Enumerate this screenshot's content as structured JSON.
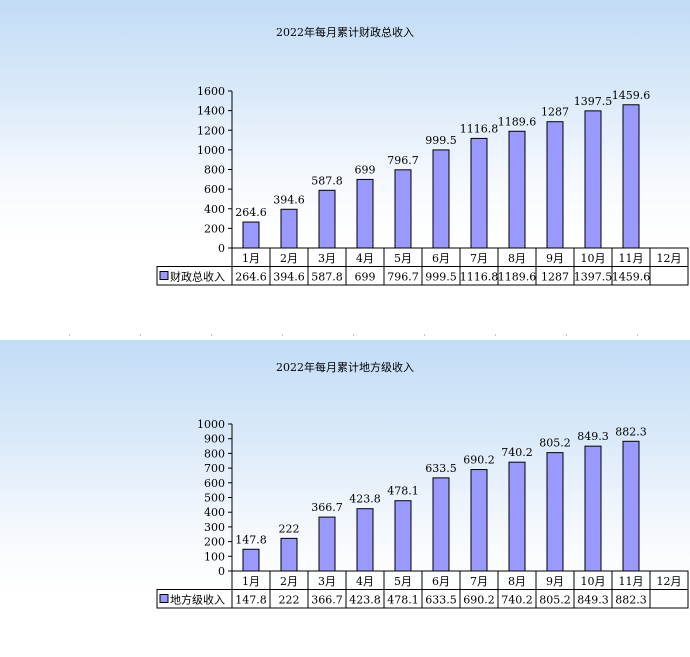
{
  "chart_data": [
    {
      "type": "bar",
      "title": "2022年每月累计财政总收入",
      "categories": [
        "1月",
        "2月",
        "3月",
        "4月",
        "5月",
        "6月",
        "7月",
        "8月",
        "9月",
        "10月",
        "11月",
        "12月"
      ],
      "series": [
        {
          "name": "财政总收入",
          "values": [
            264.6,
            394.6,
            587.8,
            699,
            796.7,
            999.5,
            1116.8,
            1189.6,
            1287,
            1397.5,
            1459.6,
            null
          ],
          "labels": [
            "264.6",
            "394.6",
            "587.8",
            "699",
            "796.7",
            "999.5",
            "1116.8",
            "1189.6",
            "1287",
            "1397.5",
            "1459.6",
            ""
          ]
        }
      ],
      "ylim": [
        0,
        1600
      ],
      "yticks": [
        "0",
        "200",
        "400",
        "600",
        "800",
        "1000",
        "1200",
        "1400",
        "1600"
      ],
      "xlabel": "",
      "ylabel": "",
      "grid": false,
      "legend": "data-table-left",
      "colors": {
        "bar": "#9999ff",
        "bar_border": "#000000"
      }
    },
    {
      "type": "bar",
      "title": "2022年每月累计地方级收入",
      "categories": [
        "1月",
        "2月",
        "3月",
        "4月",
        "5月",
        "6月",
        "7月",
        "8月",
        "9月",
        "10月",
        "11月",
        "12月"
      ],
      "series": [
        {
          "name": "地方级收入",
          "values": [
            147.8,
            222,
            366.7,
            423.8,
            478.1,
            633.5,
            690.2,
            740.2,
            805.2,
            849.3,
            882.3,
            null
          ],
          "labels": [
            "147.8",
            "222",
            "366.7",
            "423.8",
            "478.1",
            "633.5",
            "690.2",
            "740.2",
            "805.2",
            "849.3",
            "882.3",
            ""
          ]
        }
      ],
      "ylim": [
        0,
        1000
      ],
      "yticks": [
        "0",
        "100",
        "200",
        "300",
        "400",
        "500",
        "600",
        "700",
        "800",
        "900",
        "1000"
      ],
      "xlabel": "",
      "ylabel": "",
      "grid": false,
      "legend": "data-table-left",
      "colors": {
        "bar": "#9999ff",
        "bar_border": "#000000"
      }
    }
  ]
}
